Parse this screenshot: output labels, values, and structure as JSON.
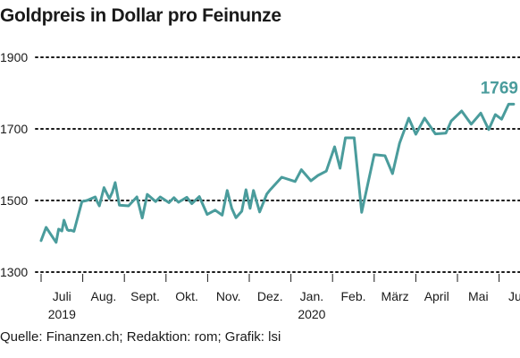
{
  "title": "Goldpreis in Dollar pro Feinunze",
  "source": "Quelle: Finanzen.ch; Redaktion: rom; Grafik: lsi",
  "colors": {
    "line": "#4a9c9c",
    "text": "#1a1a1a"
  },
  "chart_data": {
    "type": "line",
    "title": "Goldpreis in Dollar pro Feinunze",
    "ylim": [
      1300,
      1900
    ],
    "yticks": [
      "1900",
      "1700",
      "1500",
      "1300"
    ],
    "grid": true,
    "months": [
      "Juli",
      "Aug.",
      "Sept.",
      "Okt.",
      "Nov.",
      "Dez.",
      "Jan.",
      "Feb.",
      "März",
      "April",
      "Mai",
      "Juni"
    ],
    "years": [
      "2019",
      "2020"
    ],
    "last_label": "1769",
    "series": [
      {
        "x": [
          0,
          0.12,
          0.36,
          0.42,
          0.5,
          0.55,
          0.63,
          0.67,
          0.71,
          0.79,
          0.98,
          1.1,
          1.3,
          1.35,
          1.4,
          1.51,
          1.64,
          1.71,
          1.78,
          1.88,
          2.1,
          2.3,
          2.43,
          2.55,
          2.75,
          2.86,
          3.07,
          3.19,
          3.3,
          3.5,
          3.62,
          3.8,
          3.99,
          4.18,
          4.35,
          4.47,
          4.58,
          4.68,
          4.82,
          4.92,
          5.02,
          5.1,
          5.25,
          5.42,
          5.49,
          5.78,
          6.1,
          6.25,
          6.48,
          6.65,
          6.85,
          7.05,
          7.18,
          7.31,
          7.52,
          7.7,
          8.0,
          8.26,
          8.44,
          8.61,
          8.83,
          9.0,
          9.21,
          9.47,
          9.72,
          9.85,
          10.1,
          10.33,
          10.56,
          10.75,
          10.91,
          11.06,
          11.23,
          11.35
        ],
        "values": [
          1388,
          1425,
          1383,
          1420,
          1415,
          1445,
          1418,
          1416,
          1417,
          1414,
          1497,
          1500,
          1510,
          1496,
          1485,
          1536,
          1505,
          1523,
          1550,
          1487,
          1485,
          1510,
          1451,
          1517,
          1497,
          1510,
          1494,
          1508,
          1495,
          1509,
          1491,
          1511,
          1461,
          1473,
          1459,
          1528,
          1478,
          1452,
          1470,
          1530,
          1478,
          1528,
          1468,
          1518,
          1528,
          1565,
          1553,
          1586,
          1555,
          1570,
          1582,
          1650,
          1590,
          1675,
          1675,
          1467,
          1628,
          1625,
          1575,
          1660,
          1730,
          1685,
          1730,
          1686,
          1688,
          1722,
          1750,
          1713,
          1744,
          1698,
          1740,
          1727,
          1769,
          1769
        ]
      }
    ]
  }
}
